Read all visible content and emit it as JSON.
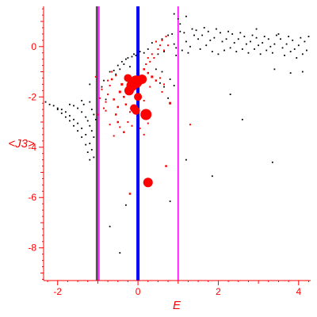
{
  "chart_data": {
    "type": "scatter",
    "xlabel": "E",
    "ylabel": "<J3>",
    "xlim": [
      -2.35,
      4.3
    ],
    "ylim": [
      -9.3,
      1.6
    ],
    "x_ticks": [
      -2,
      0,
      2,
      4
    ],
    "y_ticks": [
      0,
      -2,
      -4,
      -6,
      -8
    ],
    "colors": {
      "axis": "#ff0000",
      "ticks": "#ff0000",
      "black_points": "#000000",
      "red_points": "#ff0000",
      "line_black": "#555555",
      "line_magenta": "#ff00ff",
      "line_blue": "#0000ff"
    },
    "vertical_lines": [
      {
        "x": -1.02,
        "color": "#555555",
        "width": 3
      },
      {
        "x": -0.97,
        "color": "#ff00ff",
        "width": 1.5
      },
      {
        "x": 0.0,
        "color": "#0000ff",
        "width": 4
      },
      {
        "x": 1.0,
        "color": "#ff00ff",
        "width": 1.5
      }
    ],
    "series": [
      {
        "color": "#000000",
        "points": [
          [
            -2.3,
            -2.2
          ],
          [
            -2.2,
            -2.3
          ],
          [
            -2.1,
            -2.35
          ],
          [
            -2.0,
            -2.45
          ],
          [
            -1.9,
            -2.5
          ],
          [
            -1.8,
            -2.6
          ],
          [
            -1.7,
            -2.75
          ],
          [
            -1.6,
            -2.9
          ],
          [
            -1.5,
            -3.05
          ],
          [
            -1.4,
            -3.25
          ],
          [
            -1.3,
            -3.5
          ],
          [
            -1.2,
            -3.85
          ],
          [
            -1.15,
            -4.1
          ],
          [
            -1.1,
            -4.4
          ],
          [
            -2.0,
            -2.5
          ],
          [
            -1.9,
            -2.65
          ],
          [
            -1.8,
            -2.8
          ],
          [
            -1.7,
            -2.95
          ],
          [
            -1.6,
            -3.15
          ],
          [
            -1.5,
            -3.35
          ],
          [
            -1.4,
            -3.6
          ],
          [
            -1.3,
            -3.9
          ],
          [
            -1.25,
            -4.2
          ],
          [
            -1.2,
            -4.5
          ],
          [
            -1.7,
            -2.3
          ],
          [
            -1.6,
            -2.35
          ],
          [
            -1.5,
            -2.45
          ],
          [
            -1.4,
            -2.6
          ],
          [
            -1.3,
            -2.8
          ],
          [
            -1.25,
            -2.95
          ],
          [
            -1.2,
            -3.15
          ],
          [
            -1.15,
            -3.35
          ],
          [
            -1.1,
            -3.6
          ],
          [
            -1.4,
            -2.15
          ],
          [
            -1.35,
            -2.3
          ],
          [
            -1.2,
            -2.2
          ],
          [
            -1.15,
            -2.5
          ],
          [
            -1.1,
            -2.7
          ],
          [
            -1.05,
            -2.9
          ],
          [
            -1.2,
            -1.5
          ],
          [
            -0.9,
            -1.6
          ],
          [
            -0.85,
            -1.35
          ],
          [
            -0.8,
            -2.1
          ],
          [
            -0.7,
            -1.0
          ],
          [
            -0.6,
            -0.95
          ],
          [
            -0.55,
            -1.1
          ],
          [
            -0.5,
            -0.75
          ],
          [
            -0.45,
            -0.9
          ],
          [
            -0.4,
            -0.6
          ],
          [
            -0.35,
            -0.7
          ],
          [
            -0.3,
            -0.5
          ],
          [
            -0.25,
            -0.45
          ],
          [
            -0.2,
            -0.8
          ],
          [
            -0.15,
            -0.4
          ],
          [
            -0.1,
            -0.3
          ],
          [
            -0.05,
            -0.35
          ],
          [
            0.05,
            -0.2
          ],
          [
            0.15,
            -0.25
          ],
          [
            0.25,
            -0.1
          ],
          [
            0.35,
            0.15
          ],
          [
            0.45,
            0.2
          ],
          [
            0.5,
            -0.3
          ],
          [
            0.6,
            0.3
          ],
          [
            0.65,
            -0.2
          ],
          [
            0.75,
            0.45
          ],
          [
            0.85,
            0.5
          ],
          [
            0.9,
            0.1
          ],
          [
            0.95,
            -0.35
          ],
          [
            1.05,
            0.6
          ],
          [
            1.15,
            0.55
          ],
          [
            1.2,
            0.2
          ],
          [
            1.25,
            -0.25
          ],
          [
            1.35,
            0.7
          ],
          [
            1.45,
            0.65
          ],
          [
            1.5,
            0.3
          ],
          [
            1.55,
            -0.1
          ],
          [
            1.65,
            0.75
          ],
          [
            1.75,
            0.6
          ],
          [
            1.8,
            0.25
          ],
          [
            1.85,
            -0.2
          ],
          [
            1.95,
            0.7
          ],
          [
            2.05,
            0.55
          ],
          [
            2.1,
            0.2
          ],
          [
            2.15,
            -0.15
          ],
          [
            2.25,
            0.6
          ],
          [
            2.35,
            0.5
          ],
          [
            2.4,
            0.15
          ],
          [
            2.45,
            -0.2
          ],
          [
            2.55,
            0.55
          ],
          [
            2.65,
            0.4
          ],
          [
            2.7,
            0.1
          ],
          [
            2.75,
            -0.25
          ],
          [
            2.85,
            0.45
          ],
          [
            2.95,
            0.35
          ],
          [
            3.0,
            0.05
          ],
          [
            3.05,
            -0.3
          ],
          [
            3.15,
            0.4
          ],
          [
            3.25,
            0.3
          ],
          [
            3.3,
            0.0
          ],
          [
            3.35,
            -0.25
          ],
          [
            3.45,
            0.45
          ],
          [
            3.55,
            0.3
          ],
          [
            3.6,
            -0.05
          ],
          [
            3.65,
            -0.35
          ],
          [
            3.75,
            0.4
          ],
          [
            3.85,
            0.25
          ],
          [
            3.9,
            -0.1
          ],
          [
            3.95,
            -0.45
          ],
          [
            4.05,
            0.35
          ],
          [
            4.15,
            0.2
          ],
          [
            4.2,
            -0.15
          ],
          [
            4.25,
            0.4
          ],
          [
            0.9,
            1.3
          ],
          [
            1.0,
            1.1
          ],
          [
            1.2,
            1.2
          ],
          [
            1.05,
            0.9
          ],
          [
            0.95,
            -0.05
          ],
          [
            1.1,
            -0.15
          ],
          [
            1.3,
            0.0
          ],
          [
            1.4,
            0.45
          ],
          [
            1.6,
            0.45
          ],
          [
            1.7,
            0.05
          ],
          [
            1.9,
            0.35
          ],
          [
            2.0,
            -0.3
          ],
          [
            2.2,
            0.3
          ],
          [
            2.3,
            -0.05
          ],
          [
            2.5,
            0.3
          ],
          [
            2.6,
            -0.1
          ],
          [
            2.8,
            0.2
          ],
          [
            2.9,
            -0.1
          ],
          [
            3.1,
            0.15
          ],
          [
            3.2,
            -0.15
          ],
          [
            3.4,
            0.1
          ],
          [
            3.5,
            0.5
          ],
          [
            3.7,
            0.1
          ],
          [
            3.8,
            -0.2
          ],
          [
            4.0,
            0.05
          ],
          [
            4.1,
            -0.3
          ],
          [
            2.95,
            0.7
          ],
          [
            3.4,
            -0.9
          ],
          [
            3.8,
            -1.05
          ],
          [
            4.1,
            -1.0
          ],
          [
            2.3,
            -1.9
          ],
          [
            2.6,
            -2.9
          ],
          [
            3.35,
            -4.6
          ],
          [
            1.2,
            -4.5
          ],
          [
            1.85,
            -5.15
          ],
          [
            0.8,
            -6.15
          ],
          [
            -0.3,
            -6.3
          ],
          [
            -0.7,
            -7.15
          ],
          [
            -0.45,
            -8.2
          ],
          [
            0.55,
            -1.45
          ],
          [
            0.65,
            -1.6
          ],
          [
            0.8,
            -1.3
          ],
          [
            0.9,
            -1.55
          ],
          [
            0.75,
            -2.05
          ],
          [
            -0.05,
            -1.55
          ],
          [
            0.45,
            -0.9
          ],
          [
            0.6,
            -1.0
          ]
        ]
      },
      {
        "color": "#ff0000",
        "points": [
          [
            -0.05,
            -1.4,
            8
          ],
          [
            -0.15,
            -1.55,
            7
          ],
          [
            -0.22,
            -1.75,
            6
          ],
          [
            0.1,
            -1.3,
            6
          ],
          [
            -0.25,
            -1.25,
            5
          ],
          [
            0.0,
            -2.0,
            5
          ],
          [
            0.2,
            -2.7,
            7
          ],
          [
            0.25,
            -5.4,
            6
          ],
          [
            -0.1,
            -2.45,
            5
          ],
          [
            -0.05,
            -2.55,
            5
          ],
          [
            -0.4,
            -1.5,
            3
          ],
          [
            -0.45,
            -1.8,
            3
          ],
          [
            -0.35,
            -2.0,
            2.5
          ],
          [
            -0.3,
            -2.3,
            2.5
          ],
          [
            -0.5,
            -2.4,
            2.5
          ],
          [
            -0.55,
            -2.7,
            2.5
          ],
          [
            -0.6,
            -2.1,
            2.5
          ],
          [
            -0.65,
            -1.3,
            2.5
          ],
          [
            -0.7,
            -1.55,
            2
          ],
          [
            -0.75,
            -1.9,
            2
          ],
          [
            -0.8,
            -2.2,
            2
          ],
          [
            -0.85,
            -2.45,
            2
          ],
          [
            -0.9,
            -1.7,
            2
          ],
          [
            -0.95,
            -2.05,
            2
          ],
          [
            -1.0,
            -2.7,
            2
          ],
          [
            -1.05,
            -1.2,
            2
          ],
          [
            -0.5,
            -3.0,
            2.5
          ],
          [
            -0.35,
            -3.4,
            2.5
          ],
          [
            -0.45,
            -3.2,
            2
          ],
          [
            -0.25,
            -3.0,
            2
          ],
          [
            -0.2,
            -2.6,
            2
          ],
          [
            -0.15,
            -3.15,
            2
          ],
          [
            -0.7,
            -3.1,
            2
          ],
          [
            0.15,
            -0.9,
            2.5
          ],
          [
            0.25,
            -1.05,
            2.5
          ],
          [
            0.35,
            -1.2,
            3
          ],
          [
            0.45,
            -1.35,
            2.5
          ],
          [
            0.55,
            -1.25,
            2
          ],
          [
            0.3,
            -0.6,
            2
          ],
          [
            0.4,
            -0.45,
            2
          ],
          [
            0.5,
            -0.1,
            2
          ],
          [
            0.55,
            0.05,
            2
          ],
          [
            0.6,
            0.25,
            2
          ],
          [
            0.7,
            0.4,
            2
          ],
          [
            0.45,
            0.2,
            2
          ],
          [
            0.65,
            -0.15,
            2
          ],
          [
            0.75,
            0.05,
            2
          ],
          [
            0.35,
            -0.3,
            2
          ],
          [
            0.25,
            -0.45,
            2
          ],
          [
            0.2,
            -0.7,
            2
          ],
          [
            0.8,
            -2.25,
            3
          ],
          [
            0.7,
            -4.75,
            2.5
          ],
          [
            -0.2,
            -5.85,
            2.5
          ],
          [
            0.05,
            -3.25,
            2
          ],
          [
            0.15,
            -3.5,
            2
          ],
          [
            0.25,
            -3.05,
            2
          ],
          [
            -0.6,
            -3.55,
            2
          ],
          [
            -0.8,
            -2.55,
            2
          ],
          [
            -0.75,
            -1.35,
            2
          ],
          [
            -0.65,
            -1.0,
            2
          ],
          [
            -0.55,
            -1.15,
            2
          ],
          [
            0.05,
            -1.9,
            2
          ],
          [
            0.3,
            -1.6,
            2
          ],
          [
            0.15,
            -2.15,
            2
          ],
          [
            0.6,
            -1.8,
            2
          ],
          [
            0.65,
            -1.5,
            2
          ],
          [
            1.3,
            -3.1,
            2
          ]
        ]
      }
    ]
  }
}
